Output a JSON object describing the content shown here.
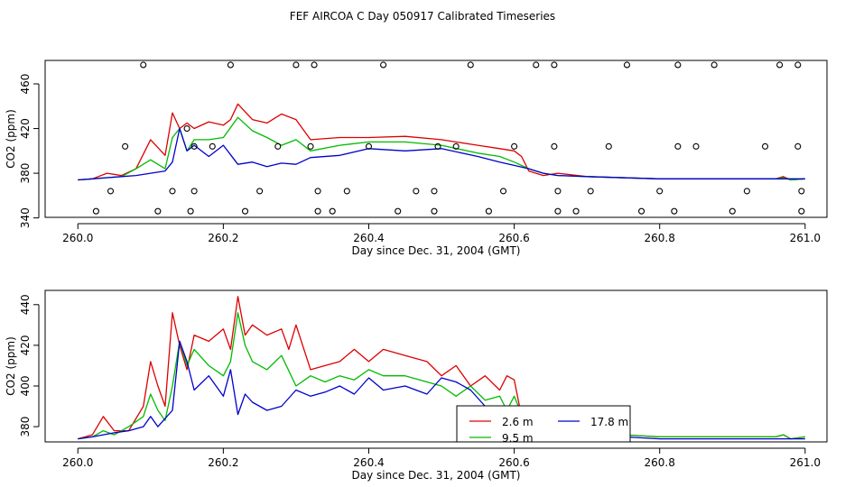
{
  "title": "FEF AIRCOA C  Day 050917  Calibrated Timeseries",
  "colors": {
    "red": "#dd0000",
    "green": "#00bb00",
    "blue": "#0000cc",
    "axis": "#000000"
  },
  "chart_data": [
    {
      "type": "line",
      "xlabel": "Day since Dec. 31, 2004 (GMT)",
      "ylabel": "CO2 (ppm)",
      "xlim": [
        259.955,
        261.03
      ],
      "ylim": [
        340.5,
        481
      ],
      "xticks": [
        260.0,
        260.2,
        260.4,
        260.6,
        260.8,
        261.0
      ],
      "xtick_labels": [
        "260.0",
        "260.2",
        "260.4",
        "260.6",
        "260.8",
        "261.0"
      ],
      "yticks": [
        340,
        380,
        420,
        460
      ],
      "ytick_labels": [
        "340",
        "380",
        "420",
        "460"
      ],
      "series": [
        {
          "name": "2.6 m",
          "color": "red",
          "x": [
            260.0,
            260.02,
            260.04,
            260.06,
            260.08,
            260.1,
            260.12,
            260.13,
            260.14,
            260.15,
            260.16,
            260.18,
            260.2,
            260.21,
            260.22,
            260.24,
            260.26,
            260.28,
            260.3,
            260.32,
            260.36,
            260.4,
            260.45,
            260.5,
            260.55,
            260.58,
            260.6,
            260.61,
            260.62,
            260.64,
            260.66,
            260.7,
            260.8,
            260.9,
            260.96,
            260.97,
            260.98,
            261.0
          ],
          "y": [
            374,
            375,
            380,
            378,
            384,
            410,
            396,
            434,
            420,
            425,
            420,
            426,
            423,
            428,
            442,
            428,
            425,
            433,
            428,
            410,
            412,
            412,
            413,
            410,
            405,
            402,
            400,
            395,
            382,
            378,
            380,
            377,
            375,
            375,
            375,
            377,
            374,
            375
          ]
        },
        {
          "name": "9.5 m",
          "color": "green",
          "x": [
            260.0,
            260.02,
            260.04,
            260.06,
            260.08,
            260.1,
            260.12,
            260.13,
            260.14,
            260.15,
            260.16,
            260.18,
            260.2,
            260.22,
            260.24,
            260.26,
            260.28,
            260.3,
            260.32,
            260.36,
            260.4,
            260.45,
            260.5,
            260.55,
            260.58,
            260.6,
            260.62,
            260.64,
            260.66,
            260.7,
            260.8,
            260.9,
            260.96,
            260.97,
            260.98,
            261.0
          ],
          "y": [
            374,
            375,
            376,
            377,
            384,
            392,
            384,
            412,
            420,
            400,
            410,
            410,
            412,
            430,
            418,
            412,
            405,
            410,
            400,
            405,
            408,
            408,
            405,
            398,
            395,
            390,
            384,
            380,
            378,
            377,
            375,
            375,
            375,
            376,
            374,
            375
          ]
        },
        {
          "name": "17.8 m",
          "color": "blue",
          "x": [
            260.0,
            260.02,
            260.04,
            260.06,
            260.08,
            260.1,
            260.12,
            260.13,
            260.14,
            260.15,
            260.16,
            260.18,
            260.2,
            260.22,
            260.24,
            260.26,
            260.28,
            260.3,
            260.32,
            260.36,
            260.4,
            260.45,
            260.5,
            260.55,
            260.58,
            260.6,
            260.62,
            260.64,
            260.66,
            260.7,
            260.8,
            260.9,
            261.0
          ],
          "y": [
            374,
            375,
            376,
            377,
            378,
            380,
            382,
            390,
            420,
            400,
            405,
            395,
            405,
            388,
            390,
            386,
            389,
            388,
            394,
            396,
            402,
            400,
            402,
            395,
            390,
            387,
            384,
            380,
            378,
            377,
            375,
            375,
            375
          ]
        }
      ],
      "points": {
        "x": [
          260.025,
          260.045,
          260.065,
          260.09,
          260.11,
          260.13,
          260.15,
          260.155,
          260.16,
          260.16,
          260.185,
          260.21,
          260.23,
          260.25,
          260.275,
          260.3,
          260.32,
          260.325,
          260.33,
          260.33,
          260.35,
          260.37,
          260.4,
          260.42,
          260.44,
          260.465,
          260.49,
          260.49,
          260.495,
          260.52,
          260.54,
          260.565,
          260.585,
          260.6,
          260.63,
          260.655,
          260.655,
          260.66,
          260.66,
          260.685,
          260.705,
          260.73,
          260.755,
          260.775,
          260.8,
          260.82,
          260.825,
          260.825,
          260.85,
          260.875,
          260.9,
          260.92,
          260.945,
          260.965,
          260.99,
          260.99,
          260.995,
          260.995
        ],
        "y": [
          346,
          364,
          404,
          477,
          346,
          364,
          420,
          346,
          364,
          404,
          404,
          477,
          346,
          364,
          404,
          477,
          404,
          477,
          346,
          364,
          346,
          364,
          404,
          477,
          346,
          364,
          346,
          364,
          404,
          404,
          477,
          346,
          364,
          404,
          477,
          404,
          477,
          346,
          364,
          346,
          364,
          404,
          477,
          346,
          364,
          346,
          404,
          477,
          404,
          477,
          346,
          364,
          404,
          477,
          404,
          477,
          346,
          364
        ]
      }
    },
    {
      "type": "line",
      "xlabel": "Day since Dec. 31, 2004 (GMT)",
      "ylabel": "CO2 (ppm)",
      "xlim": [
        259.955,
        261.03
      ],
      "ylim": [
        372.5,
        447
      ],
      "xticks": [
        260.0,
        260.2,
        260.4,
        260.6,
        260.8,
        261.0
      ],
      "xtick_labels": [
        "260.0",
        "260.2",
        "260.4",
        "260.6",
        "260.8",
        "261.0"
      ],
      "yticks": [
        380,
        400,
        420,
        440
      ],
      "ytick_labels": [
        "380",
        "400",
        "420",
        "440"
      ],
      "legend": {
        "position": "bottom-center",
        "entries": [
          {
            "label": "2.6 m",
            "color": "red"
          },
          {
            "label": "17.8 m",
            "color": "blue"
          },
          {
            "label": "9.5 m",
            "color": "green"
          }
        ]
      },
      "series": [
        {
          "name": "2.6 m",
          "color": "red",
          "x": [
            260.0,
            260.02,
            260.035,
            260.05,
            260.07,
            260.09,
            260.1,
            260.11,
            260.12,
            260.13,
            260.14,
            260.15,
            260.16,
            260.18,
            260.2,
            260.21,
            260.22,
            260.23,
            260.24,
            260.26,
            260.28,
            260.29,
            260.3,
            260.32,
            260.34,
            260.36,
            260.38,
            260.4,
            260.42,
            260.45,
            260.48,
            260.5,
            260.52,
            260.54,
            260.56,
            260.58,
            260.59,
            260.6,
            260.61,
            260.62,
            260.64,
            260.66,
            260.7,
            260.75,
            260.8,
            260.9,
            260.96,
            260.97,
            260.98,
            261.0
          ],
          "y": [
            374,
            376,
            385,
            378,
            378,
            390,
            412,
            400,
            390,
            436,
            420,
            408,
            425,
            422,
            428,
            418,
            444,
            425,
            430,
            425,
            428,
            418,
            430,
            408,
            410,
            412,
            418,
            412,
            418,
            415,
            412,
            405,
            410,
            400,
            405,
            398,
            405,
            403,
            385,
            380,
            380,
            378,
            377,
            376,
            375,
            375,
            375,
            376,
            374,
            375
          ]
        },
        {
          "name": "9.5 m",
          "color": "green",
          "x": [
            260.0,
            260.02,
            260.035,
            260.05,
            260.07,
            260.09,
            260.1,
            260.11,
            260.12,
            260.13,
            260.14,
            260.15,
            260.16,
            260.18,
            260.2,
            260.21,
            260.22,
            260.23,
            260.24,
            260.26,
            260.28,
            260.3,
            260.32,
            260.34,
            260.36,
            260.38,
            260.4,
            260.42,
            260.45,
            260.48,
            260.5,
            260.52,
            260.54,
            260.56,
            260.58,
            260.59,
            260.6,
            260.61,
            260.62,
            260.64,
            260.66,
            260.7,
            260.75,
            260.8,
            260.9,
            260.96,
            260.97,
            260.98,
            261.0
          ],
          "y": [
            374,
            375,
            378,
            376,
            380,
            385,
            396,
            388,
            383,
            400,
            422,
            410,
            418,
            410,
            405,
            412,
            436,
            420,
            412,
            408,
            415,
            400,
            405,
            402,
            405,
            403,
            408,
            405,
            405,
            402,
            400,
            395,
            400,
            393,
            395,
            388,
            395,
            386,
            381,
            379,
            378,
            377,
            376,
            375,
            375,
            375,
            376,
            374,
            375
          ]
        },
        {
          "name": "17.8 m",
          "color": "blue",
          "x": [
            260.0,
            260.02,
            260.035,
            260.05,
            260.07,
            260.09,
            260.1,
            260.11,
            260.12,
            260.13,
            260.14,
            260.15,
            260.16,
            260.18,
            260.2,
            260.21,
            260.22,
            260.23,
            260.24,
            260.26,
            260.28,
            260.3,
            260.32,
            260.34,
            260.36,
            260.38,
            260.4,
            260.42,
            260.45,
            260.48,
            260.5,
            260.52,
            260.54,
            260.56,
            260.58,
            260.6,
            260.62,
            260.64,
            260.66,
            260.7,
            260.75,
            260.8,
            260.9,
            261.0
          ],
          "y": [
            374,
            375,
            376,
            377,
            378,
            380,
            385,
            380,
            384,
            388,
            422,
            412,
            398,
            405,
            395,
            408,
            386,
            396,
            392,
            388,
            390,
            398,
            395,
            397,
            400,
            396,
            404,
            398,
            400,
            396,
            404,
            402,
            398,
            390,
            384,
            380,
            379,
            378,
            378,
            377,
            375,
            374,
            374,
            374
          ]
        }
      ]
    }
  ]
}
